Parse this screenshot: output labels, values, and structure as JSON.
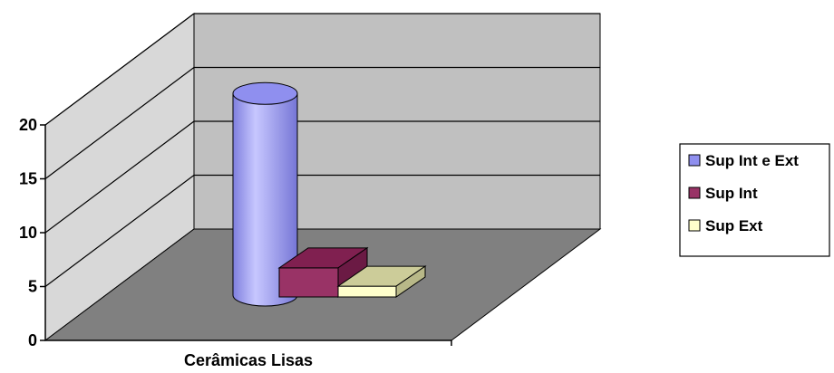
{
  "chart_data": {
    "type": "bar",
    "categories": [
      "Cerâmicas Lisas"
    ],
    "series": [
      {
        "name": "Sup Int e Ext",
        "values": [
          19
        ],
        "color": "#8f8fef",
        "shape": "cylinder"
      },
      {
        "name": "Sup Int",
        "values": [
          2.7
        ],
        "color": "#993366",
        "shape": "box"
      },
      {
        "name": "Sup Ext",
        "values": [
          1
        ],
        "color": "#ffffcc",
        "shape": "box"
      }
    ],
    "ylim": [
      0,
      20
    ],
    "yticks": [
      "0",
      "5",
      "10",
      "15",
      "20"
    ],
    "grid": true,
    "legend_position": "right",
    "colors": {
      "back_wall": "#c0c0c0",
      "floor": "#808080",
      "axis": "#000000"
    }
  }
}
